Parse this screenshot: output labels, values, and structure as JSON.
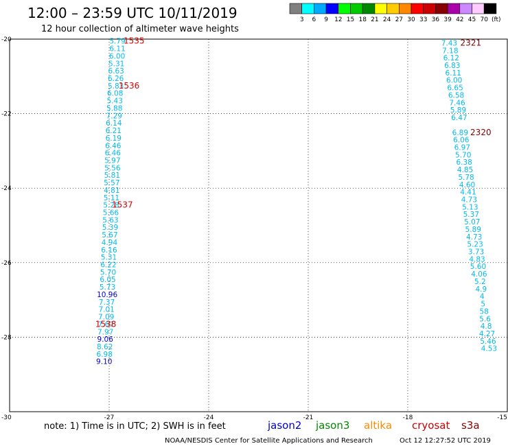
{
  "header": {
    "title": "12:00 – 23:59 UTC 10/11/2019",
    "subtitle": "12 hour collection of altimeter wave heights",
    "colorbar_unit": "(ft)"
  },
  "colorbar": {
    "colors": [
      "#808080",
      "#00ffff",
      "#00aaff",
      "#0000ff",
      "#00ff00",
      "#00cc00",
      "#008800",
      "#ffff00",
      "#ffcc00",
      "#ff8800",
      "#ff0000",
      "#cc0000",
      "#880000",
      "#aa00aa",
      "#cc88ff",
      "#ffccff",
      "#000000"
    ],
    "labels": [
      "3",
      "6",
      "9",
      "12",
      "15",
      "18",
      "21",
      "24",
      "27",
      "30",
      "33",
      "36",
      "39",
      "42",
      "45",
      "70"
    ]
  },
  "footer": {
    "note": "note: 1) Time is in UTC; 2) SWH is in feet",
    "credit": "NOAA/NESDIS Center for Satellite Applications and Research",
    "timestamp": "Oct 12 12:27:52 UTC 2019"
  },
  "legend": [
    {
      "name": "jason2",
      "color": "#0000cc"
    },
    {
      "name": "jason3",
      "color": "#008800"
    },
    {
      "name": "altika",
      "color": "#ff8800"
    },
    {
      "name": "cryosat",
      "color": "#cc0000"
    },
    {
      "name": "s3a",
      "color": "#880000"
    }
  ],
  "chart_data": {
    "type": "scatter",
    "title": "12:00 – 23:59 UTC 10/11/2019",
    "xlim": [
      -30,
      -15
    ],
    "ylim": [
      -30,
      -20
    ],
    "x_ticks": [
      "-30",
      "-27",
      "-24",
      "-21",
      "-18",
      "-15"
    ],
    "y_ticks": [
      "-20",
      "-22",
      "-24",
      "-26",
      "-28",
      "-30"
    ],
    "grid": true,
    "tracks": [
      {
        "color": "#00bbee",
        "points": [
          {
            "x": -26.75,
            "y": -20.05,
            "v": "5.79"
          },
          {
            "x": -26.75,
            "y": -20.25,
            "v": "6.11"
          },
          {
            "x": -26.76,
            "y": -20.45,
            "v": "6.00"
          },
          {
            "x": -26.78,
            "y": -20.65,
            "v": "5.31"
          },
          {
            "x": -26.79,
            "y": -20.85,
            "v": "6.63"
          },
          {
            "x": -26.8,
            "y": -21.05,
            "v": "6.26"
          },
          {
            "x": -26.8,
            "y": -21.25,
            "v": "5.83"
          },
          {
            "x": -26.82,
            "y": -21.45,
            "v": "6.08"
          },
          {
            "x": -26.83,
            "y": -21.65,
            "v": "5.43"
          },
          {
            "x": -26.84,
            "y": -21.85,
            "v": "5.88"
          },
          {
            "x": -26.85,
            "y": -22.05,
            "v": "7.29"
          },
          {
            "x": -26.86,
            "y": -22.25,
            "v": "6.14"
          },
          {
            "x": -26.87,
            "y": -22.45,
            "v": "6.21"
          },
          {
            "x": -26.87,
            "y": -22.65,
            "v": "6.19"
          },
          {
            "x": -26.88,
            "y": -22.85,
            "v": "6.46"
          },
          {
            "x": -26.89,
            "y": -23.05,
            "v": "6.46"
          },
          {
            "x": -26.9,
            "y": -23.25,
            "v": "5.97"
          },
          {
            "x": -26.9,
            "y": -23.45,
            "v": "5.56"
          },
          {
            "x": -26.91,
            "y": -23.65,
            "v": "5.81"
          },
          {
            "x": -26.92,
            "y": -23.85,
            "v": "5.57"
          },
          {
            "x": -26.92,
            "y": -24.05,
            "v": "4.81"
          },
          {
            "x": -26.93,
            "y": -24.25,
            "v": "5.11"
          },
          {
            "x": -26.94,
            "y": -24.45,
            "v": "5.28"
          },
          {
            "x": -26.95,
            "y": -24.65,
            "v": "5.66"
          },
          {
            "x": -26.96,
            "y": -24.85,
            "v": "5.63"
          },
          {
            "x": -26.97,
            "y": -25.05,
            "v": "5.39"
          },
          {
            "x": -26.98,
            "y": -25.25,
            "v": "5.67"
          },
          {
            "x": -26.99,
            "y": -25.45,
            "v": "4.94"
          },
          {
            "x": -27.0,
            "y": -25.65,
            "v": "6.16"
          },
          {
            "x": -27.01,
            "y": -25.85,
            "v": "5.31"
          },
          {
            "x": -27.02,
            "y": -26.05,
            "v": "6.22"
          },
          {
            "x": -27.03,
            "y": -26.25,
            "v": "5.70"
          },
          {
            "x": -27.04,
            "y": -26.45,
            "v": "6.05"
          },
          {
            "x": -27.05,
            "y": -26.65,
            "v": "5.73"
          }
        ]
      },
      {
        "color": "#0000cc",
        "points": [
          {
            "x": -27.06,
            "y": -26.85,
            "v": "10.96"
          }
        ]
      },
      {
        "color": "#00bbee",
        "points": [
          {
            "x": -27.07,
            "y": -27.05,
            "v": "7.37"
          },
          {
            "x": -27.08,
            "y": -27.25,
            "v": "7.01"
          },
          {
            "x": -27.09,
            "y": -27.45,
            "v": "7.09"
          },
          {
            "x": -27.1,
            "y": -27.65,
            "v": "7.67"
          },
          {
            "x": -27.11,
            "y": -27.85,
            "v": "7.97"
          }
        ]
      },
      {
        "color": "#0000cc",
        "points": [
          {
            "x": -27.12,
            "y": -28.05,
            "v": "9.06"
          }
        ]
      },
      {
        "color": "#00bbee",
        "points": [
          {
            "x": -27.13,
            "y": -28.25,
            "v": "8.62"
          },
          {
            "x": -27.14,
            "y": -28.45,
            "v": "6.98"
          }
        ]
      },
      {
        "color": "#0000cc",
        "points": [
          {
            "x": -27.15,
            "y": -28.65,
            "v": "9.10"
          }
        ]
      },
      {
        "color": "#00bbee",
        "points": [
          {
            "x": -16.75,
            "y": -20.1,
            "v": "7.43"
          },
          {
            "x": -16.72,
            "y": -20.3,
            "v": "7.18"
          },
          {
            "x": -16.69,
            "y": -20.5,
            "v": "6.12"
          },
          {
            "x": -16.66,
            "y": -20.7,
            "v": "6.83"
          },
          {
            "x": -16.63,
            "y": -20.9,
            "v": "6.11"
          },
          {
            "x": -16.6,
            "y": -21.1,
            "v": "6.00"
          },
          {
            "x": -16.57,
            "y": -21.3,
            "v": "6.65"
          },
          {
            "x": -16.54,
            "y": -21.5,
            "v": "6.58"
          },
          {
            "x": -16.51,
            "y": -21.7,
            "v": "7.46"
          },
          {
            "x": -16.48,
            "y": -21.9,
            "v": "5.89"
          },
          {
            "x": -16.45,
            "y": -22.1,
            "v": "6.47"
          },
          {
            "x": -16.42,
            "y": -22.5,
            "v": "6.89"
          },
          {
            "x": -16.39,
            "y": -22.7,
            "v": "6.06"
          },
          {
            "x": -16.36,
            "y": -22.9,
            "v": "6.97"
          },
          {
            "x": -16.33,
            "y": -23.1,
            "v": "5.70"
          },
          {
            "x": -16.3,
            "y": -23.3,
            "v": "6.38"
          },
          {
            "x": -16.27,
            "y": -23.5,
            "v": "4.85"
          },
          {
            "x": -16.24,
            "y": -23.7,
            "v": "5.78"
          },
          {
            "x": -16.21,
            "y": -23.9,
            "v": "4.60"
          },
          {
            "x": -16.18,
            "y": -24.1,
            "v": "4.41"
          },
          {
            "x": -16.15,
            "y": -24.3,
            "v": "4.73"
          },
          {
            "x": -16.12,
            "y": -24.5,
            "v": "5.13"
          },
          {
            "x": -16.09,
            "y": -24.7,
            "v": "5.37"
          },
          {
            "x": -16.06,
            "y": -24.9,
            "v": "5.07"
          },
          {
            "x": -16.03,
            "y": -25.1,
            "v": "5.89"
          },
          {
            "x": -16.0,
            "y": -25.3,
            "v": "4.73"
          },
          {
            "x": -15.97,
            "y": -25.5,
            "v": "5.23"
          },
          {
            "x": -15.94,
            "y": -25.7,
            "v": "3.73"
          },
          {
            "x": -15.91,
            "y": -25.9,
            "v": "4.83"
          },
          {
            "x": -15.88,
            "y": -26.1,
            "v": "5.60"
          },
          {
            "x": -15.85,
            "y": -26.3,
            "v": "4.06"
          },
          {
            "x": -15.82,
            "y": -26.5,
            "v": "5.2"
          },
          {
            "x": -15.79,
            "y": -26.7,
            "v": "4.9"
          },
          {
            "x": -15.76,
            "y": -26.9,
            "v": "4"
          },
          {
            "x": -15.73,
            "y": -27.1,
            "v": "5"
          },
          {
            "x": -15.7,
            "y": -27.3,
            "v": "58"
          },
          {
            "x": -15.67,
            "y": -27.5,
            "v": "5.6"
          },
          {
            "x": -15.64,
            "y": -27.7,
            "v": "4.8"
          },
          {
            "x": -15.61,
            "y": -27.9,
            "v": "4.27"
          },
          {
            "x": -15.58,
            "y": -28.1,
            "v": "5.46"
          },
          {
            "x": -15.55,
            "y": -28.3,
            "v": "4.53"
          }
        ]
      }
    ],
    "time_labels": [
      {
        "x": -26.25,
        "y": -20.05,
        "text": "1535",
        "color": "#dd0000"
      },
      {
        "x": -26.4,
        "y": -21.25,
        "text": "1536",
        "color": "#dd0000"
      },
      {
        "x": -26.6,
        "y": -24.45,
        "text": "1537",
        "color": "#dd0000"
      },
      {
        "x": -27.1,
        "y": -27.65,
        "text": "1538",
        "color": "#dd0000"
      },
      {
        "x": -16.1,
        "y": -20.1,
        "text": "2321",
        "color": "#880000"
      },
      {
        "x": -15.8,
        "y": -22.5,
        "text": "2320",
        "color": "#880000"
      }
    ]
  }
}
